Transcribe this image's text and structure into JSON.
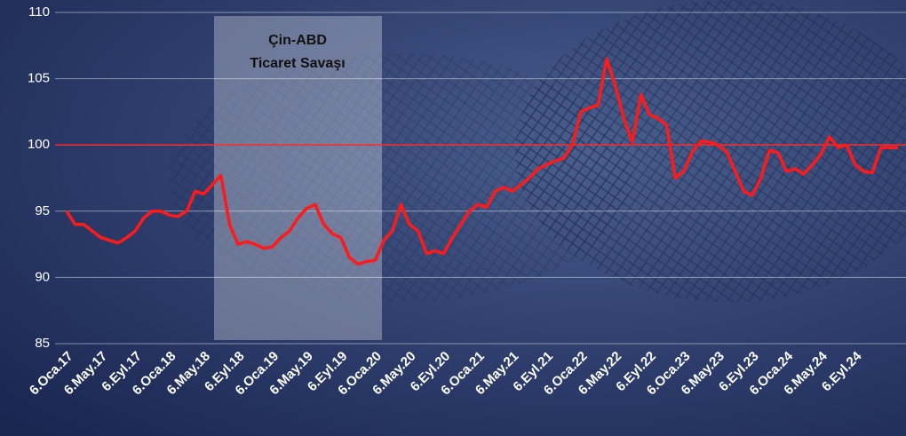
{
  "chart_data": {
    "type": "line",
    "annotation": [
      "Çin-ABD",
      "Ticaret Savaşı"
    ],
    "categories": [
      "6.Oca.17",
      null,
      null,
      null,
      "6.May.17",
      null,
      null,
      null,
      "6.Eyl.17",
      null,
      null,
      null,
      "6.Oca.18",
      null,
      null,
      null,
      "6.May.18",
      null,
      null,
      null,
      "6.Eyl.18",
      null,
      null,
      null,
      "6.Oca.19",
      null,
      null,
      null,
      "6.May.19",
      null,
      null,
      null,
      "6.Eyl.19",
      null,
      null,
      null,
      "6.Oca.20",
      null,
      null,
      null,
      "6.May.20",
      null,
      null,
      null,
      "6.Eyl.20",
      null,
      null,
      null,
      "6.Oca.21",
      null,
      null,
      null,
      "6.May.21",
      null,
      null,
      null,
      "6.Eyl.21",
      null,
      null,
      null,
      "6.Oca.22",
      null,
      null,
      null,
      "6.May.22",
      null,
      null,
      null,
      "6.Eyl.22",
      null,
      null,
      null,
      "6.Oca.23",
      null,
      null,
      null,
      "6.May.23",
      null,
      null,
      null,
      "6.Eyl.23",
      null,
      null,
      null,
      "6.Oca.24",
      null,
      null,
      null,
      "6.May.24",
      null,
      null,
      null,
      "6.Eyl.24",
      null,
      null,
      null,
      null,
      null
    ],
    "values": [
      95,
      94,
      94,
      93.5,
      93,
      92.8,
      92.6,
      93,
      93.5,
      94.5,
      95,
      95,
      94.7,
      94.6,
      95,
      96.5,
      96.3,
      97,
      97.7,
      94,
      92.5,
      92.7,
      92.5,
      92.2,
      92.3,
      93,
      93.5,
      94.5,
      95.2,
      95.5,
      94,
      93.3,
      93,
      91.5,
      91,
      91.2,
      91.3,
      92.8,
      93.5,
      95.5,
      94,
      93.5,
      91.8,
      92,
      91.8,
      93,
      94,
      95,
      95.5,
      95.3,
      96.5,
      96.8,
      96.5,
      97,
      97.5,
      98.2,
      98.5,
      98.8,
      99,
      100,
      102.5,
      102.8,
      103,
      106.5,
      104.5,
      102,
      100.2,
      103.8,
      102.3,
      102,
      101.5,
      97.5,
      98,
      99.5,
      100.3,
      100.2,
      100,
      99.5,
      98,
      96.5,
      96.2,
      97.5,
      99.6,
      99.4,
      98,
      98.2,
      97.8,
      98.5,
      99.3,
      100.6,
      99.8,
      100,
      98.5,
      98,
      97.9,
      99.8,
      99.8,
      99.8
    ],
    "color": "#ff1a1a",
    "reference_line": 100,
    "reference_color": "#ff2a2a",
    "ylim": [
      85,
      110
    ],
    "yticks": [
      85,
      90,
      95,
      100,
      105,
      110
    ],
    "grid": true
  }
}
